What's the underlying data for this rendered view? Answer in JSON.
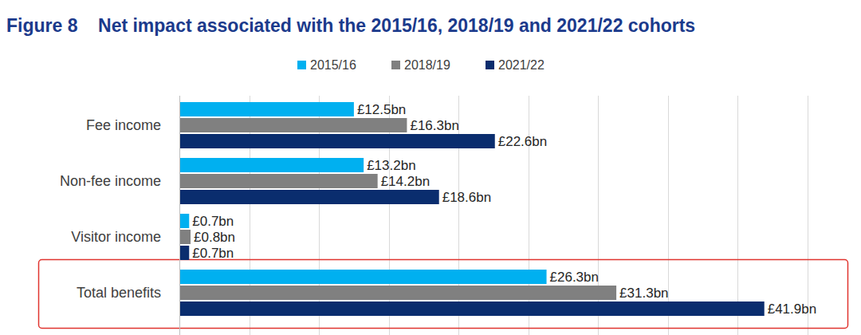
{
  "chart_data": {
    "type": "bar",
    "orientation": "horizontal",
    "title": "Figure 8    Net impact associated with the 2015/16, 2018/19 and 2021/22 cohorts",
    "categories": [
      "Fee income",
      "Non-fee income",
      "Visitor income",
      "Total benefits"
    ],
    "series": [
      {
        "name": "2015/16",
        "color": "#00b0f0",
        "values": [
          12.5,
          13.2,
          0.7,
          26.3
        ],
        "value_labels": [
          "£12.5bn",
          "£13.2bn",
          "£0.7bn",
          "£26.3bn"
        ]
      },
      {
        "name": "2018/19",
        "color": "#808080",
        "values": [
          16.3,
          14.2,
          0.8,
          31.3
        ],
        "value_labels": [
          "£16.3bn",
          "£14.2bn",
          "£0.8bn",
          "£31.3bn"
        ]
      },
      {
        "name": "2021/22",
        "color": "#0a2d6e",
        "values": [
          22.6,
          18.6,
          0.7,
          41.9
        ],
        "value_labels": [
          "£22.6bn",
          "£18.6bn",
          "£0.7bn",
          "£41.9bn"
        ]
      }
    ],
    "xlim": [
      0,
      45
    ],
    "xticks": [
      0,
      5,
      10,
      15,
      20,
      25,
      30,
      35,
      40,
      45
    ],
    "grid": true,
    "legend": "top",
    "data_labels": true,
    "tick_labels": false
  }
}
